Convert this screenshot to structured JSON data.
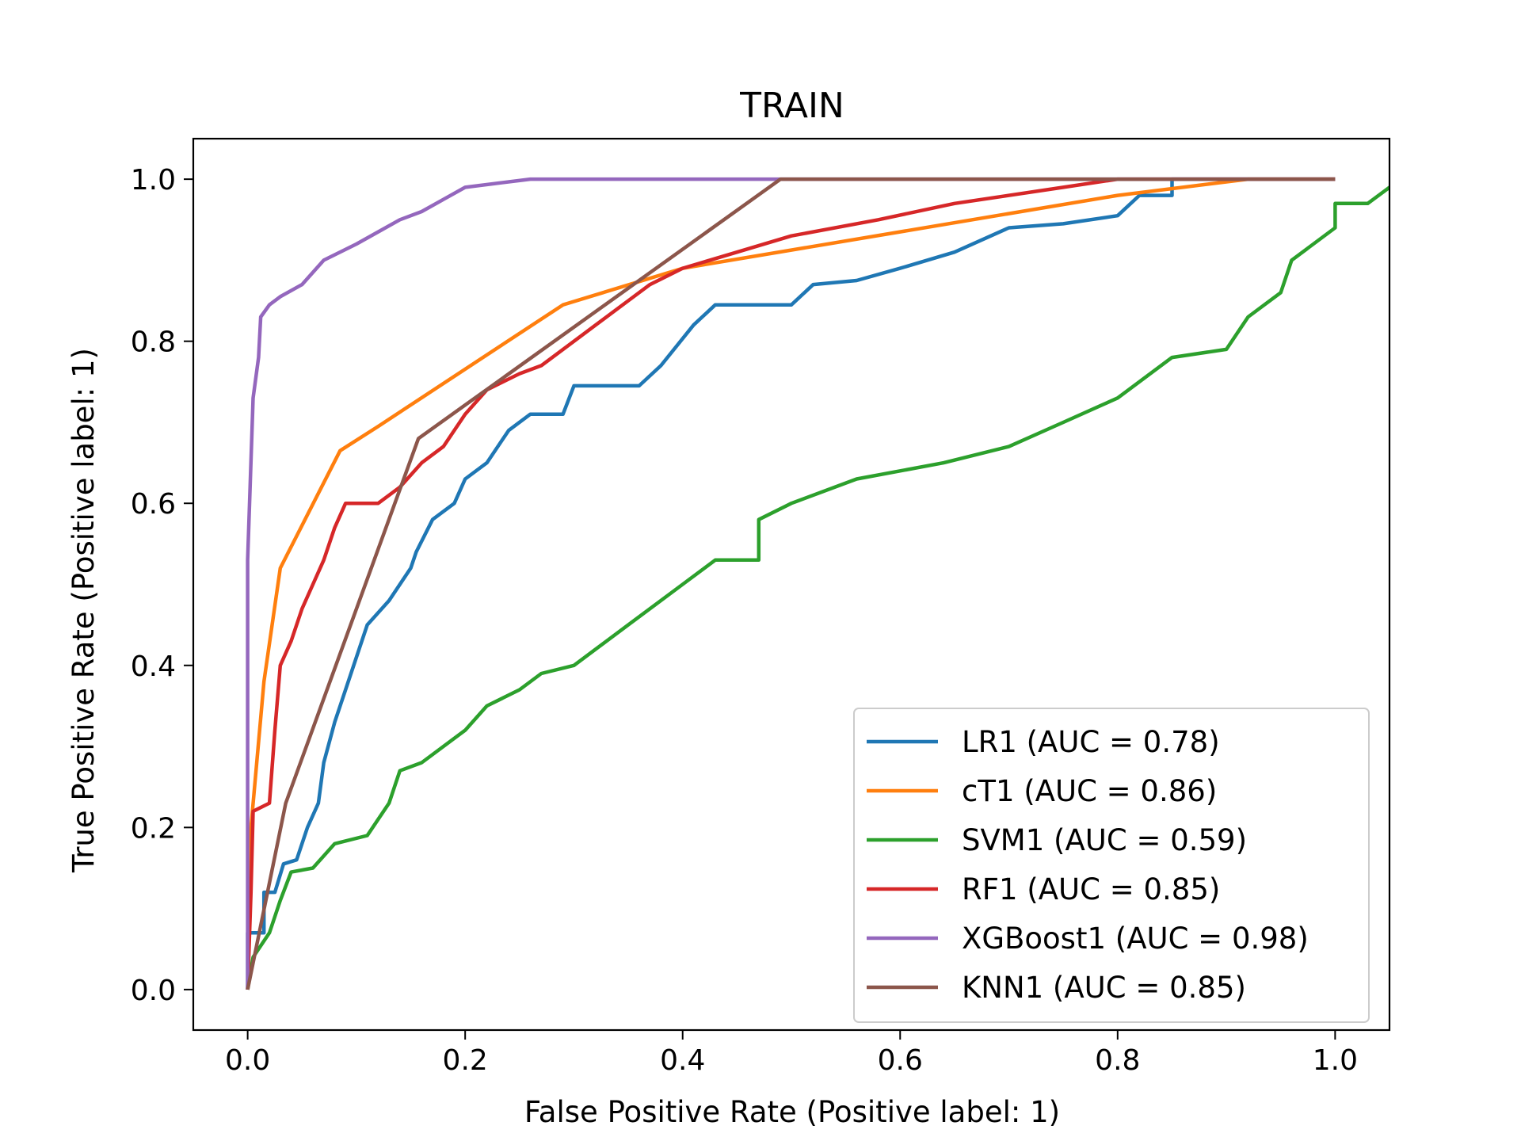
{
  "chart_data": {
    "type": "line",
    "title": "TRAIN",
    "xlabel": "False Positive Rate (Positive label: 1)",
    "ylabel": "True Positive Rate (Positive label: 1)",
    "xlim": [
      -0.05,
      1.05
    ],
    "ylim": [
      -0.05,
      1.05
    ],
    "xticks": [
      "0.0",
      "0.2",
      "0.4",
      "0.6",
      "0.8",
      "1.0"
    ],
    "yticks": [
      "0.0",
      "0.2",
      "0.4",
      "0.6",
      "0.8",
      "1.0"
    ],
    "grid": false,
    "legend_position": "lower-right",
    "series": [
      {
        "name": "LR1 (AUC = 0.78)",
        "color": "#1f77b4",
        "points": [
          [
            0,
            0
          ],
          [
            0,
            0.07
          ],
          [
            0.015,
            0.07
          ],
          [
            0.015,
            0.12
          ],
          [
            0.025,
            0.12
          ],
          [
            0.033,
            0.155
          ],
          [
            0.045,
            0.16
          ],
          [
            0.055,
            0.2
          ],
          [
            0.065,
            0.23
          ],
          [
            0.07,
            0.28
          ],
          [
            0.08,
            0.33
          ],
          [
            0.09,
            0.37
          ],
          [
            0.1,
            0.41
          ],
          [
            0.11,
            0.45
          ],
          [
            0.13,
            0.48
          ],
          [
            0.15,
            0.52
          ],
          [
            0.155,
            0.54
          ],
          [
            0.17,
            0.58
          ],
          [
            0.19,
            0.6
          ],
          [
            0.2,
            0.63
          ],
          [
            0.22,
            0.65
          ],
          [
            0.24,
            0.69
          ],
          [
            0.26,
            0.71
          ],
          [
            0.29,
            0.71
          ],
          [
            0.3,
            0.745
          ],
          [
            0.36,
            0.745
          ],
          [
            0.38,
            0.77
          ],
          [
            0.41,
            0.82
          ],
          [
            0.43,
            0.845
          ],
          [
            0.5,
            0.845
          ],
          [
            0.52,
            0.87
          ],
          [
            0.56,
            0.875
          ],
          [
            0.6,
            0.89
          ],
          [
            0.65,
            0.91
          ],
          [
            0.7,
            0.94
          ],
          [
            0.75,
            0.945
          ],
          [
            0.8,
            0.955
          ],
          [
            0.82,
            0.98
          ],
          [
            0.85,
            0.98
          ],
          [
            0.85,
            1.0
          ],
          [
            1.0,
            1.0
          ]
        ]
      },
      {
        "name": "cT1 (AUC = 0.86)",
        "color": "#ff7f0e",
        "points": [
          [
            0,
            0
          ],
          [
            0.003,
            0.2
          ],
          [
            0.015,
            0.38
          ],
          [
            0.03,
            0.52
          ],
          [
            0.085,
            0.665
          ],
          [
            0.12,
            0.695
          ],
          [
            0.29,
            0.845
          ],
          [
            0.4,
            0.89
          ],
          [
            0.8,
            0.98
          ],
          [
            0.92,
            1.0
          ],
          [
            1.0,
            1.0
          ]
        ]
      },
      {
        "name": "SVM1 (AUC = 0.59)",
        "color": "#2ca02c",
        "points": [
          [
            0,
            0
          ],
          [
            0.005,
            0.04
          ],
          [
            0.02,
            0.07
          ],
          [
            0.03,
            0.11
          ],
          [
            0.04,
            0.145
          ],
          [
            0.06,
            0.15
          ],
          [
            0.08,
            0.18
          ],
          [
            0.11,
            0.19
          ],
          [
            0.13,
            0.23
          ],
          [
            0.14,
            0.27
          ],
          [
            0.16,
            0.28
          ],
          [
            0.2,
            0.32
          ],
          [
            0.22,
            0.35
          ],
          [
            0.25,
            0.37
          ],
          [
            0.27,
            0.39
          ],
          [
            0.3,
            0.4
          ],
          [
            0.32,
            0.42
          ],
          [
            0.35,
            0.45
          ],
          [
            0.4,
            0.5
          ],
          [
            0.43,
            0.53
          ],
          [
            0.47,
            0.53
          ],
          [
            0.47,
            0.58
          ],
          [
            0.5,
            0.6
          ],
          [
            0.56,
            0.63
          ],
          [
            0.64,
            0.65
          ],
          [
            0.7,
            0.67
          ],
          [
            0.75,
            0.7
          ],
          [
            0.8,
            0.73
          ],
          [
            0.85,
            0.78
          ],
          [
            0.9,
            0.79
          ],
          [
            0.92,
            0.83
          ],
          [
            0.95,
            0.86
          ],
          [
            0.96,
            0.9
          ],
          [
            1.0,
            0.94
          ],
          [
            1.0,
            0.97
          ],
          [
            1.03,
            0.97
          ],
          [
            1.05,
            0.99
          ],
          [
            1.06,
            1.0
          ]
        ]
      },
      {
        "name": "RF1 (AUC = 0.85)",
        "color": "#d62728",
        "points": [
          [
            0,
            0
          ],
          [
            0.003,
            0.12
          ],
          [
            0.005,
            0.22
          ],
          [
            0.02,
            0.23
          ],
          [
            0.025,
            0.32
          ],
          [
            0.03,
            0.4
          ],
          [
            0.04,
            0.43
          ],
          [
            0.05,
            0.47
          ],
          [
            0.06,
            0.5
          ],
          [
            0.07,
            0.53
          ],
          [
            0.08,
            0.57
          ],
          [
            0.09,
            0.6
          ],
          [
            0.12,
            0.6
          ],
          [
            0.14,
            0.62
          ],
          [
            0.16,
            0.65
          ],
          [
            0.18,
            0.67
          ],
          [
            0.2,
            0.71
          ],
          [
            0.22,
            0.74
          ],
          [
            0.25,
            0.76
          ],
          [
            0.27,
            0.77
          ],
          [
            0.3,
            0.8
          ],
          [
            0.32,
            0.82
          ],
          [
            0.35,
            0.85
          ],
          [
            0.37,
            0.87
          ],
          [
            0.4,
            0.89
          ],
          [
            0.45,
            0.91
          ],
          [
            0.5,
            0.93
          ],
          [
            0.58,
            0.95
          ],
          [
            0.65,
            0.97
          ],
          [
            0.75,
            0.99
          ],
          [
            0.8,
            1.0
          ],
          [
            1.0,
            1.0
          ]
        ]
      },
      {
        "name": "XGBoost1 (AUC = 0.98)",
        "color": "#9467bd",
        "points": [
          [
            0,
            0
          ],
          [
            0,
            0.53
          ],
          [
            0.005,
            0.73
          ],
          [
            0.01,
            0.78
          ],
          [
            0.012,
            0.83
          ],
          [
            0.02,
            0.845
          ],
          [
            0.03,
            0.855
          ],
          [
            0.05,
            0.87
          ],
          [
            0.07,
            0.9
          ],
          [
            0.1,
            0.92
          ],
          [
            0.12,
            0.935
          ],
          [
            0.14,
            0.95
          ],
          [
            0.16,
            0.96
          ],
          [
            0.18,
            0.975
          ],
          [
            0.2,
            0.99
          ],
          [
            0.26,
            1.0
          ],
          [
            1.0,
            1.0
          ]
        ]
      },
      {
        "name": "KNN1 (AUC = 0.85)",
        "color": "#8c564b",
        "points": [
          [
            0,
            0
          ],
          [
            0.035,
            0.23
          ],
          [
            0.157,
            0.68
          ],
          [
            0.49,
            1.0
          ],
          [
            1.0,
            1.0
          ]
        ]
      }
    ]
  }
}
